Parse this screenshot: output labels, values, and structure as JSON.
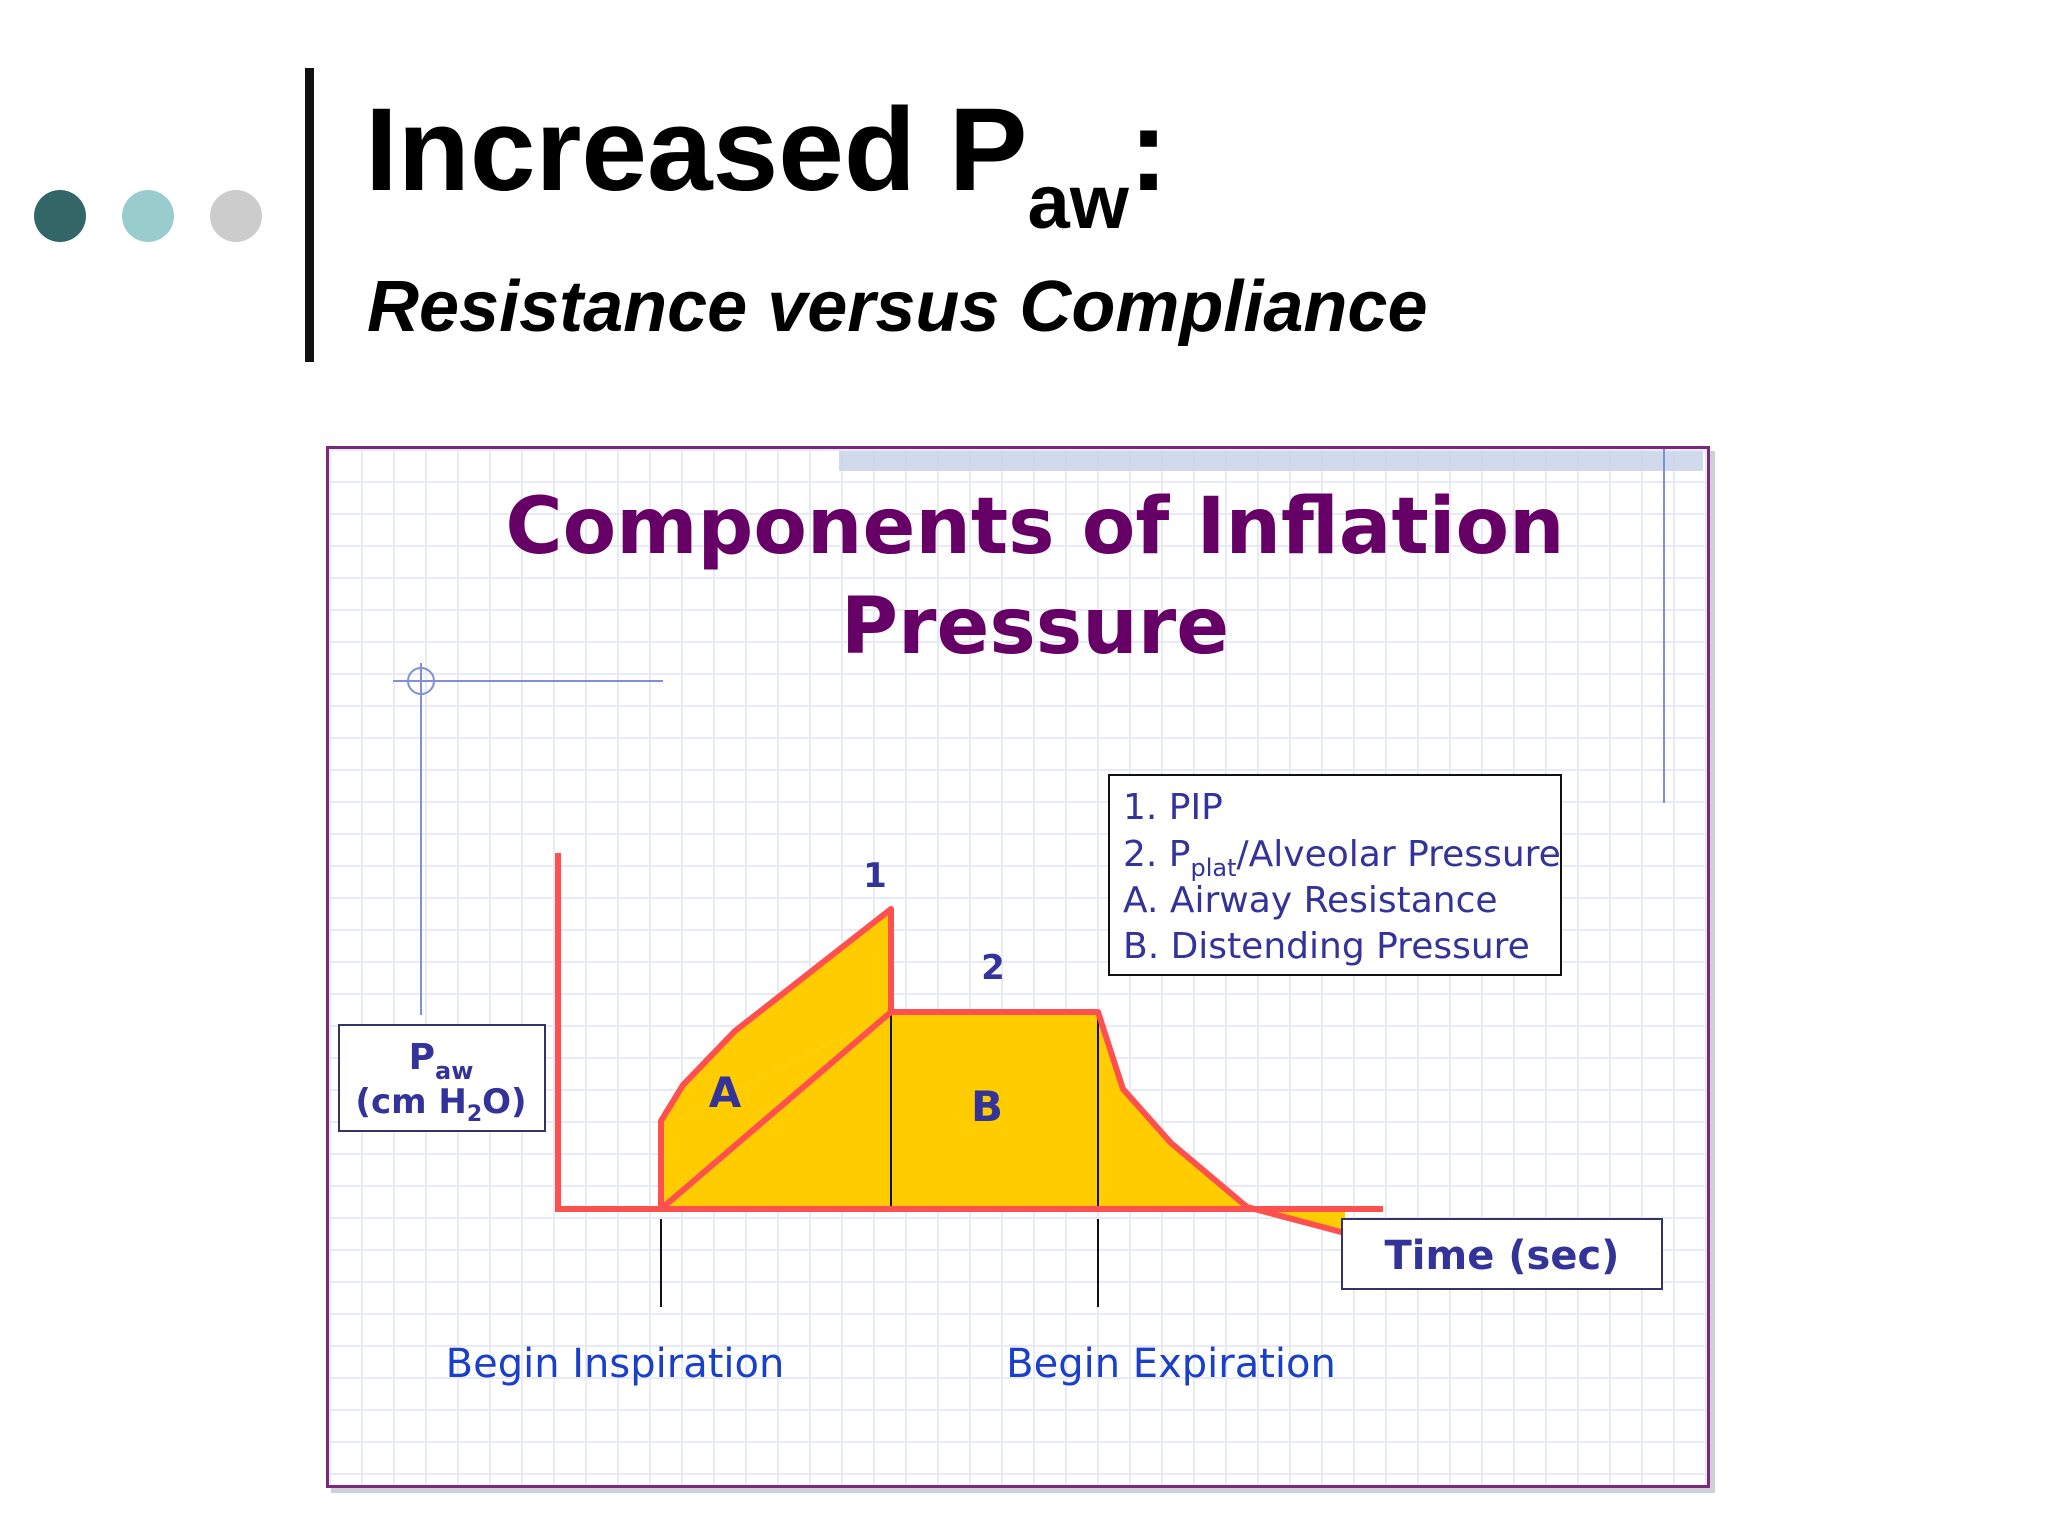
{
  "slide": {
    "title_main": "Increased P",
    "title_sub": "aw",
    "title_colon": ":",
    "subtitle": "Resistance versus Compliance"
  },
  "colors": {
    "dot_dark": "#336666",
    "dot_teal": "#99cccc",
    "dot_gray": "#cccccc",
    "frame_border": "#7a2a7a",
    "heading_purple": "#660066",
    "curve_red": "#ff5050",
    "fill_yellow": "#ffcc00",
    "label_navy": "#333399",
    "label_blue": "#1a3fc8"
  },
  "diagram": {
    "heading_line1": "Components of Inflation",
    "heading_line2": "Pressure",
    "legend": {
      "item1": "1. PIP",
      "item2_prefix": "2. P",
      "item2_sub": "plat",
      "item2_suffix": "/Alveolar Pressure",
      "itemA": "A. Airway Resistance",
      "itemB": "B. Distending Pressure"
    },
    "marker_1": "1",
    "marker_2": "2",
    "region_a": "A",
    "region_b": "B",
    "y_axis_label": {
      "line1_main": "P",
      "line1_sub": "aw",
      "line2_prefix": "(cm H",
      "line2_sub": "2",
      "line2_suffix": "O)"
    },
    "x_axis_label": "Time (sec)",
    "begin_inspiration": "Begin Inspiration",
    "begin_expiration": "Begin Expiration"
  }
}
